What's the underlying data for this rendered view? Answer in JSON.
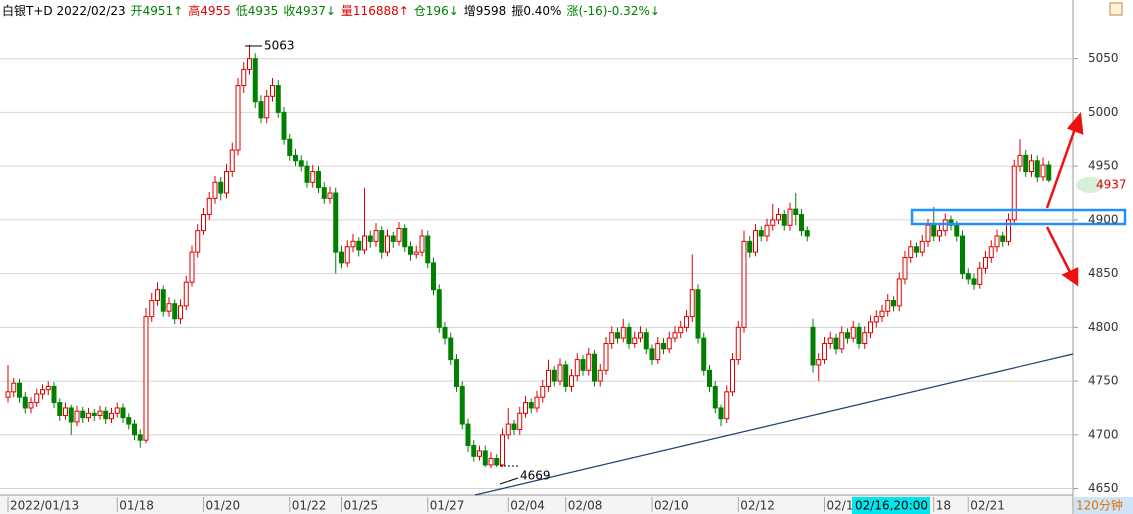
{
  "chart_data": {
    "type": "candlestick",
    "header": [
      {
        "text": "白银T+D 2022/02/23",
        "color": "#000000"
      },
      {
        "text": "开4951↑",
        "color": "#008000"
      },
      {
        "text": "高4955",
        "color": "#e00000"
      },
      {
        "text": "低4935",
        "color": "#008000"
      },
      {
        "text": "收4937↓",
        "color": "#008000"
      },
      {
        "text": "量116888↑",
        "color": "#e00000"
      },
      {
        "text": "仓196↓",
        "color": "#008000"
      },
      {
        "text": "增9598",
        "color": "#000000"
      },
      {
        "text": "振0.40%",
        "color": "#000000"
      },
      {
        "text": "涨(-16)-0.32%↓",
        "color": "#008000"
      }
    ],
    "up_color": "#e00000",
    "down_color": "#008000",
    "ylim": [
      4644,
      5086
    ],
    "yticks": [
      4650,
      4700,
      4750,
      4800,
      4850,
      4900,
      4950,
      5000,
      5050
    ],
    "grid": true,
    "max_label": "5063",
    "min_label": "4669",
    "last_label": "4937",
    "cursor_label": "02/16,20:00",
    "period": "120分钟",
    "categories": [
      "2022/01/13",
      null,
      null,
      null,
      null,
      null,
      null,
      null,
      null,
      null,
      null,
      null,
      null,
      null,
      null,
      null,
      null,
      null,
      null,
      "01/18",
      null,
      null,
      null,
      null,
      null,
      null,
      null,
      null,
      null,
      null,
      null,
      null,
      null,
      null,
      "01/20",
      null,
      null,
      null,
      null,
      null,
      null,
      null,
      null,
      null,
      null,
      null,
      null,
      null,
      null,
      "01/22",
      null,
      null,
      null,
      null,
      null,
      null,
      null,
      null,
      "01/25",
      null,
      null,
      null,
      null,
      null,
      null,
      null,
      null,
      null,
      null,
      null,
      null,
      null,
      null,
      "01/27",
      null,
      null,
      null,
      null,
      null,
      null,
      null,
      null,
      null,
      null,
      null,
      null,
      null,
      "02/04",
      null,
      null,
      null,
      null,
      null,
      null,
      null,
      null,
      null,
      "02/08",
      null,
      null,
      null,
      null,
      null,
      null,
      null,
      null,
      null,
      null,
      null,
      null,
      null,
      null,
      "02/10",
      null,
      null,
      null,
      null,
      null,
      null,
      null,
      null,
      null,
      null,
      null,
      null,
      null,
      null,
      "02/12",
      null,
      null,
      null,
      null,
      null,
      null,
      null,
      null,
      null,
      null,
      null,
      null,
      null,
      null,
      "02/1",
      null,
      null,
      null,
      null,
      null,
      null,
      null,
      null,
      null,
      null,
      null,
      null,
      null,
      null,
      null,
      null,
      null,
      null,
      "18",
      null,
      null,
      null,
      null,
      null,
      "02/21",
      null,
      null,
      null,
      null,
      null,
      null,
      null,
      null,
      null,
      null,
      null,
      null,
      null,
      null
    ],
    "ohlc": [
      [
        4735,
        4765,
        4730,
        4740
      ],
      [
        4740,
        4753,
        4735,
        4748
      ],
      [
        4748,
        4752,
        4730,
        4735
      ],
      [
        4735,
        4740,
        4720,
        4725
      ],
      [
        4725,
        4735,
        4720,
        4730
      ],
      [
        4730,
        4743,
        4726,
        4738
      ],
      [
        4738,
        4747,
        4733,
        4742
      ],
      [
        4742,
        4750,
        4737,
        4745
      ],
      [
        4745,
        4749,
        4725,
        4730
      ],
      [
        4730,
        4734,
        4713,
        4718
      ],
      [
        4718,
        4730,
        4714,
        4725
      ],
      [
        4725,
        4728,
        4700,
        4712
      ],
      [
        4712,
        4727,
        4708,
        4722
      ],
      [
        4722,
        4726,
        4711,
        4716
      ],
      [
        4716,
        4725,
        4712,
        4720
      ],
      [
        4720,
        4724,
        4713,
        4718
      ],
      [
        4718,
        4727,
        4714,
        4722
      ],
      [
        4722,
        4726,
        4710,
        4715
      ],
      [
        4715,
        4725,
        4711,
        4720
      ],
      [
        4720,
        4730,
        4716,
        4725
      ],
      [
        4725,
        4729,
        4711,
        4716
      ],
      [
        4716,
        4720,
        4705,
        4710
      ],
      [
        4710,
        4714,
        4695,
        4700
      ],
      [
        4700,
        4705,
        4688,
        4695
      ],
      [
        4695,
        4818,
        4692,
        4810
      ],
      [
        4810,
        4832,
        4805,
        4825
      ],
      [
        4825,
        4842,
        4820,
        4835
      ],
      [
        4835,
        4839,
        4810,
        4815
      ],
      [
        4815,
        4828,
        4810,
        4822
      ],
      [
        4822,
        4826,
        4803,
        4808
      ],
      [
        4808,
        4826,
        4803,
        4820
      ],
      [
        4820,
        4848,
        4816,
        4842
      ],
      [
        4842,
        4876,
        4838,
        4870
      ],
      [
        4870,
        4896,
        4865,
        4890
      ],
      [
        4890,
        4911,
        4886,
        4905
      ],
      [
        4905,
        4926,
        4900,
        4920
      ],
      [
        4920,
        4941,
        4915,
        4935
      ],
      [
        4935,
        4940,
        4918,
        4925
      ],
      [
        4925,
        4952,
        4920,
        4945
      ],
      [
        4945,
        4972,
        4940,
        4965
      ],
      [
        4965,
        5032,
        4960,
        5025
      ],
      [
        5025,
        5047,
        5018,
        5040
      ],
      [
        5040,
        5063,
        5035,
        5050
      ],
      [
        5050,
        5055,
        5004,
        5010
      ],
      [
        5010,
        5016,
        4990,
        4995
      ],
      [
        4995,
        5021,
        4990,
        5015
      ],
      [
        5015,
        5032,
        5010,
        5025
      ],
      [
        5025,
        5030,
        4995,
        5000
      ],
      [
        5000,
        5005,
        4970,
        4975
      ],
      [
        4975,
        4980,
        4955,
        4960
      ],
      [
        4960,
        4966,
        4950,
        4955
      ],
      [
        4955,
        4960,
        4945,
        4950
      ],
      [
        4950,
        4955,
        4930,
        4935
      ],
      [
        4935,
        4951,
        4930,
        4945
      ],
      [
        4945,
        4950,
        4925,
        4930
      ],
      [
        4930,
        4935,
        4915,
        4920
      ],
      [
        4920,
        4931,
        4915,
        4925
      ],
      [
        4925,
        4930,
        4850,
        4870
      ],
      [
        4870,
        4876,
        4855,
        4860
      ],
      [
        4860,
        4881,
        4856,
        4875
      ],
      [
        4875,
        4887,
        4870,
        4880
      ],
      [
        4880,
        4884,
        4866,
        4872
      ],
      [
        4872,
        4930,
        4868,
        4885
      ],
      [
        4885,
        4890,
        4874,
        4880
      ],
      [
        4880,
        4897,
        4875,
        4890
      ],
      [
        4890,
        4894,
        4864,
        4870
      ],
      [
        4870,
        4891,
        4866,
        4885
      ],
      [
        4885,
        4889,
        4874,
        4880
      ],
      [
        4880,
        4898,
        4876,
        4892
      ],
      [
        4892,
        4896,
        4870,
        4875
      ],
      [
        4875,
        4880,
        4862,
        4868
      ],
      [
        4868,
        4876,
        4864,
        4870
      ],
      [
        4870,
        4891,
        4866,
        4885
      ],
      [
        4885,
        4890,
        4855,
        4860
      ],
      [
        4860,
        4865,
        4830,
        4835
      ],
      [
        4835,
        4840,
        4795,
        4800
      ],
      [
        4800,
        4805,
        4784,
        4790
      ],
      [
        4790,
        4795,
        4765,
        4770
      ],
      [
        4770,
        4775,
        4740,
        4745
      ],
      [
        4745,
        4750,
        4705,
        4710
      ],
      [
        4710,
        4715,
        4684,
        4690
      ],
      [
        4690,
        4695,
        4675,
        4680
      ],
      [
        4680,
        4690,
        4676,
        4685
      ],
      [
        4685,
        4690,
        4670,
        4672
      ],
      [
        4672,
        4684,
        4669,
        4678
      ],
      [
        4678,
        4682,
        4670,
        4672
      ],
      [
        4672,
        4706,
        4670,
        4700
      ],
      [
        4700,
        4725,
        4696,
        4710
      ],
      [
        4710,
        4714,
        4700,
        4705
      ],
      [
        4705,
        4726,
        4700,
        4720
      ],
      [
        4720,
        4736,
        4716,
        4730
      ],
      [
        4730,
        4734,
        4720,
        4725
      ],
      [
        4725,
        4741,
        4721,
        4735
      ],
      [
        4735,
        4751,
        4730,
        4745
      ],
      [
        4745,
        4770,
        4740,
        4760
      ],
      [
        4760,
        4764,
        4745,
        4750
      ],
      [
        4750,
        4771,
        4746,
        4765
      ],
      [
        4765,
        4769,
        4740,
        4745
      ],
      [
        4745,
        4761,
        4740,
        4755
      ],
      [
        4755,
        4776,
        4750,
        4770
      ],
      [
        4770,
        4774,
        4755,
        4760
      ],
      [
        4760,
        4781,
        4755,
        4775
      ],
      [
        4775,
        4779,
        4745,
        4750
      ],
      [
        4750,
        4766,
        4745,
        4760
      ],
      [
        4760,
        4791,
        4756,
        4785
      ],
      [
        4785,
        4801,
        4780,
        4795
      ],
      [
        4795,
        4800,
        4785,
        4790
      ],
      [
        4790,
        4808,
        4786,
        4800
      ],
      [
        4800,
        4804,
        4780,
        4785
      ],
      [
        4785,
        4796,
        4781,
        4790
      ],
      [
        4790,
        4801,
        4786,
        4795
      ],
      [
        4795,
        4799,
        4775,
        4780
      ],
      [
        4780,
        4784,
        4765,
        4770
      ],
      [
        4770,
        4791,
        4766,
        4785
      ],
      [
        4785,
        4790,
        4775,
        4780
      ],
      [
        4780,
        4796,
        4776,
        4790
      ],
      [
        4790,
        4801,
        4786,
        4795
      ],
      [
        4795,
        4806,
        4790,
        4800
      ],
      [
        4800,
        4816,
        4796,
        4810
      ],
      [
        4810,
        4868,
        4805,
        4835
      ],
      [
        4835,
        4840,
        4785,
        4790
      ],
      [
        4790,
        4795,
        4755,
        4760
      ],
      [
        4760,
        4765,
        4740,
        4745
      ],
      [
        4745,
        4750,
        4720,
        4725
      ],
      [
        4725,
        4728,
        4708,
        4715
      ],
      [
        4715,
        4746,
        4711,
        4740
      ],
      [
        4740,
        4776,
        4736,
        4770
      ],
      [
        4770,
        4806,
        4765,
        4800
      ],
      [
        4800,
        4890,
        4795,
        4880
      ],
      [
        4880,
        4885,
        4865,
        4870
      ],
      [
        4870,
        4896,
        4866,
        4890
      ],
      [
        4890,
        4894,
        4880,
        4885
      ],
      [
        4885,
        4901,
        4880,
        4895
      ],
      [
        4895,
        4915,
        4890,
        4900
      ],
      [
        4900,
        4911,
        4896,
        4905
      ],
      [
        4905,
        4909,
        4890,
        4895
      ],
      [
        4895,
        4916,
        4890,
        4910
      ],
      [
        4910,
        4925,
        4895,
        4905
      ],
      [
        4905,
        4910,
        4885,
        4890
      ],
      [
        4890,
        4894,
        4880,
        4885
      ],
      [
        4800,
        4808,
        4758,
        4765
      ],
      [
        4765,
        4776,
        4750,
        4770
      ],
      [
        4770,
        4791,
        4766,
        4785
      ],
      [
        4785,
        4796,
        4780,
        4790
      ],
      [
        4790,
        4794,
        4775,
        4780
      ],
      [
        4780,
        4801,
        4776,
        4795
      ],
      [
        4795,
        4799,
        4785,
        4790
      ],
      [
        4790,
        4806,
        4786,
        4800
      ],
      [
        4800,
        4804,
        4780,
        4785
      ],
      [
        4785,
        4801,
        4780,
        4795
      ],
      [
        4795,
        4811,
        4790,
        4805
      ],
      [
        4805,
        4816,
        4800,
        4810
      ],
      [
        4810,
        4821,
        4805,
        4815
      ],
      [
        4815,
        4831,
        4810,
        4825
      ],
      [
        4825,
        4829,
        4815,
        4820
      ],
      [
        4820,
        4851,
        4815,
        4845
      ],
      [
        4845,
        4871,
        4840,
        4865
      ],
      [
        4865,
        4881,
        4860,
        4875
      ],
      [
        4875,
        4879,
        4865,
        4870
      ],
      [
        4870,
        4886,
        4866,
        4880
      ],
      [
        4880,
        4901,
        4875,
        4895
      ],
      [
        4895,
        4912,
        4880,
        4885
      ],
      [
        4885,
        4896,
        4880,
        4890
      ],
      [
        4890,
        4906,
        4885,
        4900
      ],
      [
        4900,
        4904,
        4890,
        4895
      ],
      [
        4895,
        4899,
        4880,
        4885
      ],
      [
        4885,
        4890,
        4845,
        4850
      ],
      [
        4850,
        4855,
        4840,
        4845
      ],
      [
        4845,
        4850,
        4835,
        4840
      ],
      [
        4840,
        4861,
        4836,
        4855
      ],
      [
        4855,
        4871,
        4850,
        4865
      ],
      [
        4865,
        4881,
        4860,
        4875
      ],
      [
        4875,
        4891,
        4870,
        4885
      ],
      [
        4885,
        4889,
        4875,
        4880
      ],
      [
        4880,
        4906,
        4876,
        4900
      ],
      [
        4900,
        4956,
        4896,
        4950
      ],
      [
        4950,
        4975,
        4945,
        4960
      ],
      [
        4960,
        4965,
        4940,
        4945
      ],
      [
        4945,
        4961,
        4940,
        4955
      ],
      [
        4955,
        4960,
        4935,
        4940
      ],
      [
        4940,
        4958,
        4936,
        4951
      ],
      [
        4951,
        4955,
        4935,
        4937
      ]
    ]
  }
}
